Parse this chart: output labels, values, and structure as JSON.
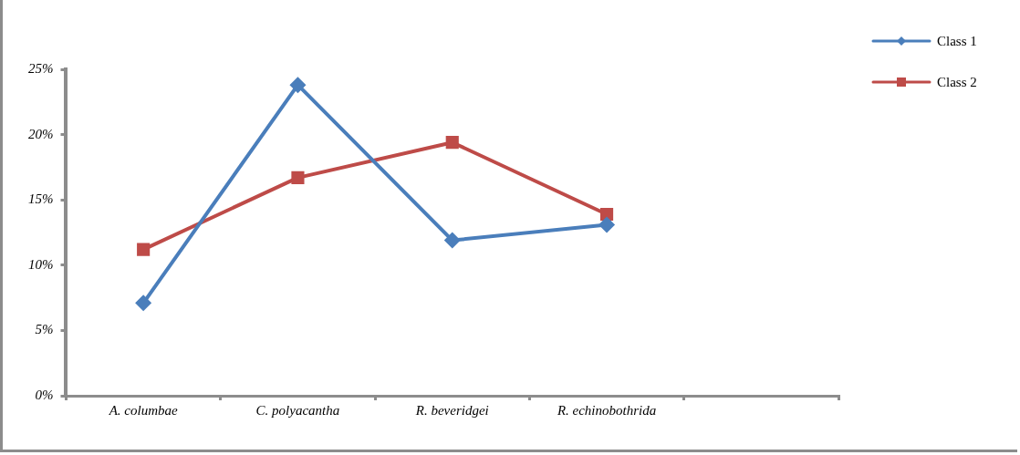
{
  "chart_data": {
    "type": "line",
    "categories": [
      "A. columbae",
      "C. polyacantha",
      "R. beveridgei",
      "R. echinobothrida",
      null
    ],
    "series": [
      {
        "name": "Class 1",
        "color": "#4a7ebb",
        "marker": "diamond",
        "values": [
          7.1,
          23.8,
          11.9,
          13.1,
          null
        ]
      },
      {
        "name": "Class 2",
        "color": "#be4b48",
        "marker": "square",
        "values": [
          11.2,
          16.7,
          19.4,
          13.9,
          null
        ]
      }
    ],
    "ylim": [
      0,
      25
    ],
    "yticks": [
      {
        "value": 0,
        "label": "0%"
      },
      {
        "value": 5,
        "label": "5%"
      },
      {
        "value": 10,
        "label": "10%"
      },
      {
        "value": 15,
        "label": "15%"
      },
      {
        "value": 20,
        "label": "20%"
      },
      {
        "value": 25,
        "label": "25%"
      }
    ],
    "grid": false,
    "legend": "top right",
    "line_style": "solid"
  }
}
